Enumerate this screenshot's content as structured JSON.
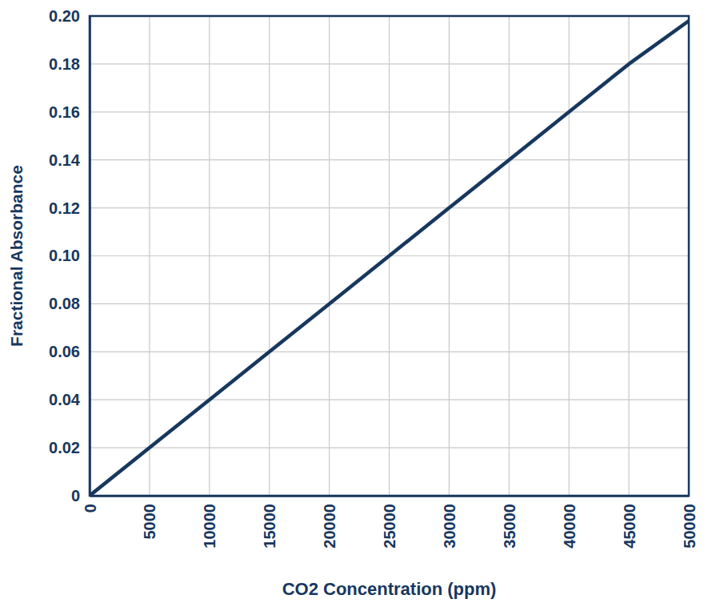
{
  "chart_data": {
    "type": "line",
    "x_label": "CO2 Concentration (ppm)",
    "y_label": "Fractional Absorbance",
    "x": [
      0,
      5000,
      10000,
      15000,
      20000,
      25000,
      30000,
      35000,
      40000,
      45000,
      50000
    ],
    "values": [
      0,
      0.02,
      0.04,
      0.06,
      0.08,
      0.1,
      0.12,
      0.14,
      0.16,
      0.18,
      0.198
    ],
    "color": "#17375e",
    "xlim": [
      0,
      50000
    ],
    "xticks": [
      0,
      5000,
      10000,
      15000,
      20000,
      25000,
      30000,
      35000,
      40000,
      45000,
      50000
    ],
    "ylim": [
      0,
      0.2
    ],
    "yticks": [
      0,
      0.02,
      0.04,
      0.06,
      0.08,
      {
        "value": 0.1,
        "label": "0.10"
      },
      0.12,
      0.14,
      0.16,
      0.18,
      {
        "value": 0.2,
        "label": "0.20"
      }
    ],
    "grid": true
  }
}
